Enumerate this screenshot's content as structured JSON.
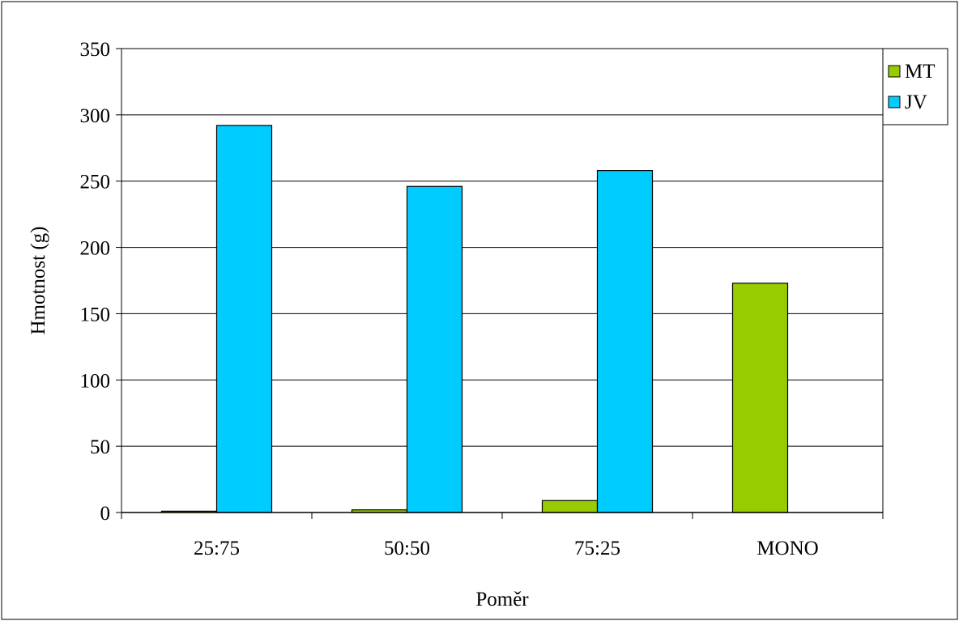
{
  "chart_data": {
    "type": "bar",
    "title": "",
    "xlabel": "Poměr",
    "ylabel": "Hmotnost (g)",
    "ylim": [
      0,
      350
    ],
    "yticks": [
      0,
      50,
      100,
      150,
      200,
      250,
      300,
      350
    ],
    "categories": [
      "25:75",
      "50:50",
      "75:25",
      "MONO"
    ],
    "series": [
      {
        "name": "MT",
        "color": "#99cc00",
        "values": [
          1,
          2,
          9,
          173
        ]
      },
      {
        "name": "JV",
        "color": "#00ccff",
        "values": [
          292,
          246,
          258,
          0
        ]
      }
    ],
    "grid": true,
    "legend_position": "top-right"
  }
}
